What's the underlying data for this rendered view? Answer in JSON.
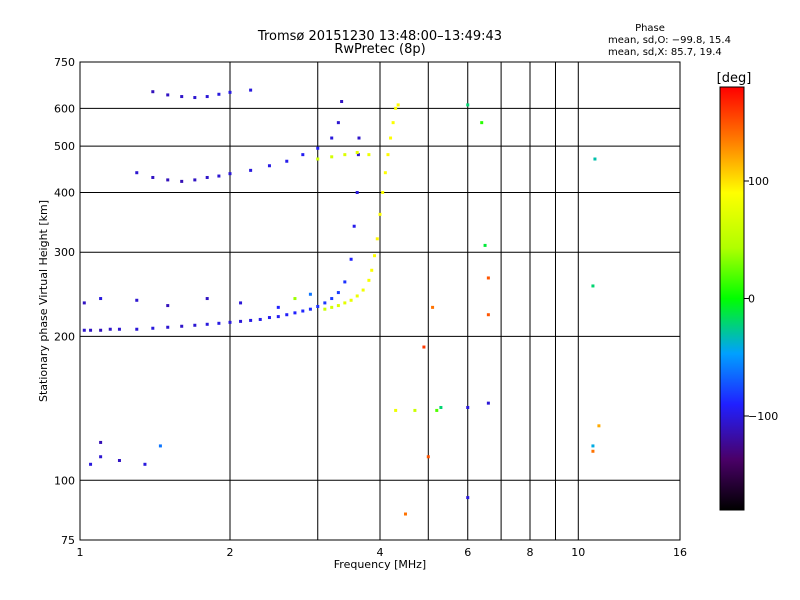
{
  "title": "Tromsø 20151230 13:48:00–13:49:43",
  "subtitle": "RwPretec (8p)",
  "phase_box": {
    "title": "Phase",
    "line_o": "mean, sd,O: −99.8, 15.4",
    "line_x": "mean, sd,X:  85.7, 19.4"
  },
  "colorbar": {
    "label": "[deg]",
    "ticks": [
      {
        "value": 100,
        "label": "100"
      },
      {
        "value": 0,
        "label": "0"
      },
      {
        "value": -100,
        "label": "−100"
      }
    ],
    "range": [
      -180,
      180
    ]
  },
  "chart_data": {
    "type": "scatter",
    "title": "Tromsø 20151230 13:48:00–13:49:43",
    "subtitle": "RwPretec (8p)",
    "xlabel": "Frequency [MHz]",
    "ylabel": "Stationary phase Virtual Height [km]",
    "xscale": "log",
    "yscale": "log",
    "xlim": [
      1,
      16
    ],
    "ylim": [
      75,
      750
    ],
    "xticks": [
      {
        "value": 1,
        "label": "1"
      },
      {
        "value": 2,
        "label": "2"
      },
      {
        "value": 4,
        "label": "4"
      },
      {
        "value": 6,
        "label": "6"
      },
      {
        "value": 8,
        "label": "8"
      },
      {
        "value": 10,
        "label": "10"
      },
      {
        "value": 16,
        "label": "16"
      }
    ],
    "x_minor_gridlines": [
      3,
      5,
      7,
      9
    ],
    "yticks": [
      {
        "value": 75,
        "label": "75"
      },
      {
        "value": 100,
        "label": "100"
      },
      {
        "value": 200,
        "label": "200"
      },
      {
        "value": 300,
        "label": "300"
      },
      {
        "value": 400,
        "label": "400"
      },
      {
        "value": 500,
        "label": "500"
      },
      {
        "value": 600,
        "label": "600"
      },
      {
        "value": 750,
        "label": "750"
      }
    ],
    "grid": true,
    "color_variable": "phase [deg]",
    "series": [
      {
        "points": [
          [
            1.02,
            206,
            -105
          ],
          [
            1.05,
            206,
            -108
          ],
          [
            1.1,
            206,
            -110
          ],
          [
            1.15,
            207,
            -106
          ],
          [
            1.2,
            207,
            -104
          ],
          [
            1.3,
            207,
            -102
          ],
          [
            1.4,
            208,
            -100
          ],
          [
            1.5,
            209,
            -104
          ],
          [
            1.6,
            210,
            -106
          ],
          [
            1.7,
            211,
            -103
          ],
          [
            1.8,
            212,
            -100
          ],
          [
            1.9,
            213,
            -98
          ],
          [
            2.0,
            214,
            -100
          ],
          [
            2.1,
            215,
            -102
          ],
          [
            2.2,
            216,
            -98
          ],
          [
            2.3,
            217,
            -96
          ],
          [
            2.4,
            219,
            -95
          ],
          [
            2.5,
            220,
            -94
          ],
          [
            2.6,
            222,
            -92
          ],
          [
            2.7,
            224,
            -90
          ],
          [
            2.8,
            226,
            -88
          ],
          [
            2.9,
            228,
            -86
          ],
          [
            3.0,
            231,
            -84
          ],
          [
            3.1,
            235,
            -82
          ],
          [
            3.2,
            240,
            -80
          ],
          [
            3.3,
            247,
            -80
          ],
          [
            3.4,
            260,
            -84
          ],
          [
            3.5,
            290,
            -90
          ],
          [
            3.55,
            340,
            -96
          ],
          [
            3.6,
            400,
            -100
          ],
          [
            3.62,
            480,
            -104
          ],
          [
            3.63,
            520,
            -106
          ]
        ]
      },
      {
        "points": [
          [
            3.1,
            228,
            60
          ],
          [
            3.2,
            230,
            65
          ],
          [
            3.3,
            232,
            70
          ],
          [
            3.4,
            235,
            75
          ],
          [
            3.5,
            238,
            78
          ],
          [
            3.6,
            243,
            80
          ],
          [
            3.7,
            250,
            82
          ],
          [
            3.8,
            262,
            85
          ],
          [
            3.85,
            275,
            88
          ],
          [
            3.9,
            295,
            90
          ],
          [
            3.95,
            320,
            92
          ],
          [
            4.0,
            360,
            90
          ],
          [
            4.05,
            400,
            88
          ],
          [
            4.1,
            440,
            90
          ],
          [
            4.15,
            480,
            92
          ],
          [
            4.2,
            520,
            90
          ],
          [
            4.25,
            560,
            88
          ],
          [
            4.3,
            600,
            90
          ],
          [
            4.35,
            610,
            92
          ]
        ]
      },
      {
        "points": [
          [
            1.3,
            440,
            -104
          ],
          [
            1.4,
            430,
            -108
          ],
          [
            1.5,
            425,
            -110
          ],
          [
            1.6,
            422,
            -112
          ],
          [
            1.7,
            425,
            -108
          ],
          [
            1.8,
            430,
            -106
          ],
          [
            1.9,
            433,
            -104
          ],
          [
            2.0,
            438,
            -102
          ],
          [
            2.2,
            445,
            -100
          ],
          [
            2.4,
            455,
            -98
          ],
          [
            2.6,
            465,
            -96
          ],
          [
            2.8,
            480,
            -94
          ],
          [
            3.0,
            495,
            -92
          ],
          [
            3.2,
            520,
            -100
          ],
          [
            3.3,
            560,
            -104
          ],
          [
            3.35,
            620,
            -108
          ]
        ]
      },
      {
        "points": [
          [
            3.0,
            470,
            60
          ],
          [
            3.2,
            475,
            65
          ],
          [
            3.4,
            480,
            70
          ],
          [
            3.6,
            485,
            75
          ],
          [
            3.8,
            480,
            80
          ]
        ]
      },
      {
        "points": [
          [
            1.4,
            650,
            -110
          ],
          [
            1.5,
            640,
            -108
          ],
          [
            1.6,
            635,
            -106
          ],
          [
            1.7,
            632,
            -104
          ],
          [
            1.8,
            635,
            -102
          ],
          [
            1.9,
            642,
            -100
          ],
          [
            2.0,
            648,
            -98
          ],
          [
            2.2,
            655,
            -100
          ]
        ]
      },
      {
        "points": [
          [
            1.02,
            235,
            -108
          ],
          [
            1.1,
            240,
            -100
          ],
          [
            1.3,
            238,
            -104
          ],
          [
            1.5,
            232,
            -110
          ],
          [
            1.8,
            240,
            -108
          ],
          [
            2.1,
            235,
            -102
          ],
          [
            2.5,
            230,
            -90
          ],
          [
            2.7,
            240,
            40
          ],
          [
            2.9,
            245,
            -60
          ],
          [
            1.05,
            108,
            -100
          ],
          [
            1.1,
            112,
            -104
          ],
          [
            1.2,
            110,
            -108
          ],
          [
            1.35,
            108,
            -100
          ],
          [
            1.45,
            118,
            -60
          ],
          [
            1.1,
            120,
            -112
          ]
        ]
      },
      {
        "points": [
          [
            4.3,
            140,
            80
          ],
          [
            4.7,
            140,
            60
          ],
          [
            5.2,
            140,
            20
          ],
          [
            5.3,
            142,
            -20
          ],
          [
            6.0,
            142,
            -100
          ],
          [
            6.6,
            145,
            -102
          ],
          [
            6.0,
            92,
            -100
          ],
          [
            4.5,
            85,
            140
          ],
          [
            4.9,
            190,
            160
          ],
          [
            5.0,
            112,
            150
          ],
          [
            5.1,
            230,
            140
          ],
          [
            6.6,
            265,
            150
          ],
          [
            6.6,
            222,
            150
          ],
          [
            6.5,
            310,
            -10
          ],
          [
            6.4,
            560,
            10
          ],
          [
            6.0,
            610,
            -20
          ],
          [
            10.7,
            115,
            140
          ],
          [
            10.7,
            118,
            -40
          ],
          [
            10.7,
            255,
            -20
          ],
          [
            10.8,
            470,
            -30
          ],
          [
            11.0,
            130,
            120
          ]
        ]
      }
    ]
  }
}
